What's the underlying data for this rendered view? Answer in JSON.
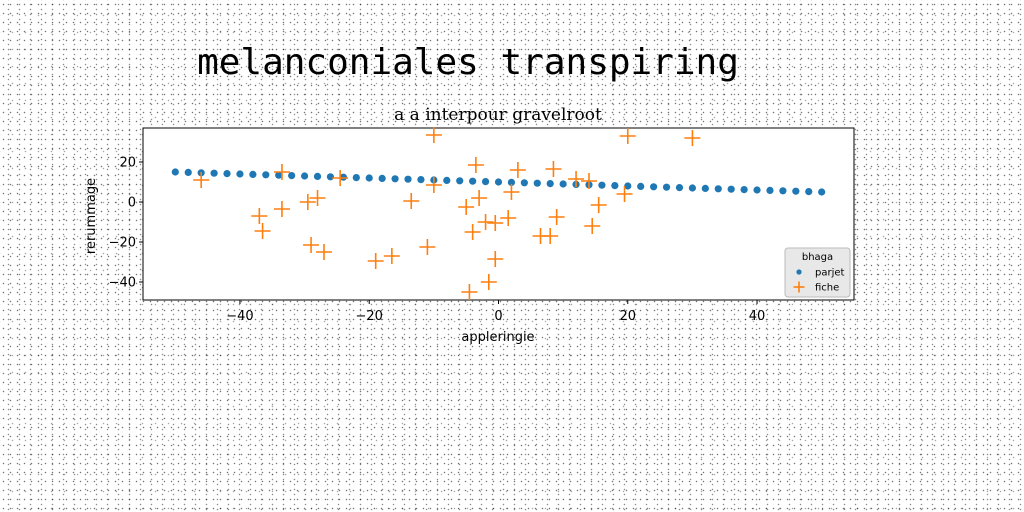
{
  "chart_data": {
    "type": "scatter",
    "title": "melanconiales transpiring",
    "subtitle": "a a interpour gravelroot",
    "xlabel": "appleringie",
    "ylabel": "rerummage",
    "xlim": [
      -55,
      55
    ],
    "ylim": [
      -49,
      37
    ],
    "xticks": [
      -40,
      -20,
      0,
      20,
      40
    ],
    "yticks": [
      -40,
      -20,
      0,
      20
    ],
    "grid": false,
    "legend": {
      "title": "bhaga",
      "placement": "lower-right"
    },
    "series": [
      {
        "name": "parjet",
        "marker": "circle",
        "color": "#1f77b4",
        "x": [
          -50,
          -48,
          -46,
          -44,
          -42,
          -40,
          -38,
          -36,
          -34,
          -32,
          -30,
          -28,
          -26,
          -24,
          -22,
          -20,
          -18,
          -16,
          -14,
          -12,
          -10,
          -8,
          -6,
          -4,
          -2,
          0,
          2,
          4,
          6,
          8,
          10,
          12,
          14,
          16,
          18,
          20,
          22,
          24,
          26,
          28,
          30,
          32,
          34,
          36,
          38,
          40,
          42,
          44,
          46,
          48,
          50
        ],
        "y": [
          15.0,
          14.8,
          14.6,
          14.4,
          14.2,
          14.0,
          13.8,
          13.6,
          13.4,
          13.2,
          13.0,
          12.8,
          12.6,
          12.4,
          12.2,
          12.0,
          11.8,
          11.6,
          11.4,
          11.2,
          11.0,
          10.8,
          10.6,
          10.4,
          10.2,
          10.0,
          9.8,
          9.6,
          9.4,
          9.2,
          9.0,
          8.8,
          8.6,
          8.4,
          8.2,
          8.0,
          7.8,
          7.6,
          7.4,
          7.2,
          7.0,
          6.8,
          6.6,
          6.4,
          6.2,
          6.0,
          5.8,
          5.6,
          5.4,
          5.2,
          5.0
        ]
      },
      {
        "name": "fiche",
        "marker": "plus",
        "color": "#ff7f0e",
        "x": [
          -46,
          -37,
          -36.5,
          -33.5,
          -33.5,
          -29.5,
          -29,
          -28,
          -27,
          -24.5,
          -19,
          -16.5,
          -13.5,
          -11,
          -10,
          -10,
          -5,
          -4.5,
          -4,
          -3.5,
          -3,
          -2,
          -1.5,
          -0.5,
          -0.5,
          1.5,
          2,
          3,
          6.5,
          8,
          8.5,
          9,
          12,
          14,
          14.5,
          15.5,
          19.5,
          20,
          30
        ],
        "y": [
          11,
          -7,
          -14.5,
          15,
          -3.5,
          0,
          -21.5,
          2,
          -25,
          12,
          -29.5,
          -27,
          0.5,
          -22.5,
          8.5,
          33.5,
          -2.5,
          -45,
          -15,
          18.5,
          2,
          -10,
          -40,
          -28.5,
          -10.5,
          -8,
          5,
          16,
          -17,
          -17,
          16.5,
          -7.5,
          11.5,
          10.5,
          -12,
          -1.5,
          4,
          33,
          32
        ]
      }
    ]
  }
}
